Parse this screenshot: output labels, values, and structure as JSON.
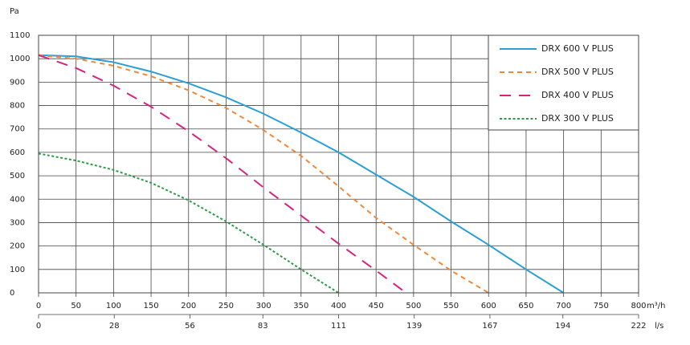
{
  "chart_data": {
    "type": "line",
    "ylabel": "Pa",
    "xlabel": "m³/h",
    "x2label": "l/s",
    "xlim": [
      0,
      800
    ],
    "xticks": [
      0,
      50,
      100,
      150,
      200,
      250,
      300,
      350,
      400,
      450,
      500,
      550,
      600,
      650,
      700,
      750,
      800
    ],
    "x2lim": [
      0,
      222
    ],
    "x2ticks": [
      0,
      28,
      56,
      83,
      111,
      139,
      167,
      194,
      222
    ],
    "ylim": [
      0,
      1100
    ],
    "yticks": [
      0,
      100,
      200,
      300,
      400,
      500,
      600,
      700,
      800,
      900,
      1000,
      1100
    ],
    "grid": true,
    "legend": "upper right",
    "series": [
      {
        "name": "DRX 600 V PLUS",
        "color": "#2a9fd6",
        "linestyle": "solid",
        "x": [
          0,
          50,
          100,
          150,
          200,
          250,
          300,
          350,
          400,
          450,
          500,
          550,
          600,
          650,
          700
        ],
        "values": [
          1015,
          1010,
          985,
          945,
          895,
          835,
          765,
          685,
          600,
          505,
          410,
          305,
          205,
          100,
          0
        ]
      },
      {
        "name": "DRX 500 V PLUS",
        "color": "#f0883a",
        "linestyle": "dashed",
        "x": [
          0,
          50,
          100,
          150,
          200,
          250,
          300,
          350,
          400,
          450,
          500,
          550,
          600
        ],
        "values": [
          1015,
          1000,
          970,
          925,
          865,
          790,
          695,
          585,
          455,
          320,
          205,
          95,
          0
        ]
      },
      {
        "name": "DRX 400 V PLUS",
        "color": "#d6247f",
        "linestyle": "longdash",
        "x": [
          0,
          50,
          100,
          150,
          200,
          250,
          300,
          350,
          400,
          450,
          490
        ],
        "values": [
          1015,
          960,
          885,
          795,
          690,
          575,
          450,
          330,
          210,
          95,
          0
        ]
      },
      {
        "name": "DRX 300 V PLUS",
        "color": "#2e9a48",
        "linestyle": "dotted",
        "x": [
          0,
          50,
          100,
          150,
          200,
          250,
          300,
          350,
          400
        ],
        "values": [
          595,
          565,
          525,
          470,
          395,
          305,
          205,
          100,
          0
        ]
      }
    ]
  }
}
